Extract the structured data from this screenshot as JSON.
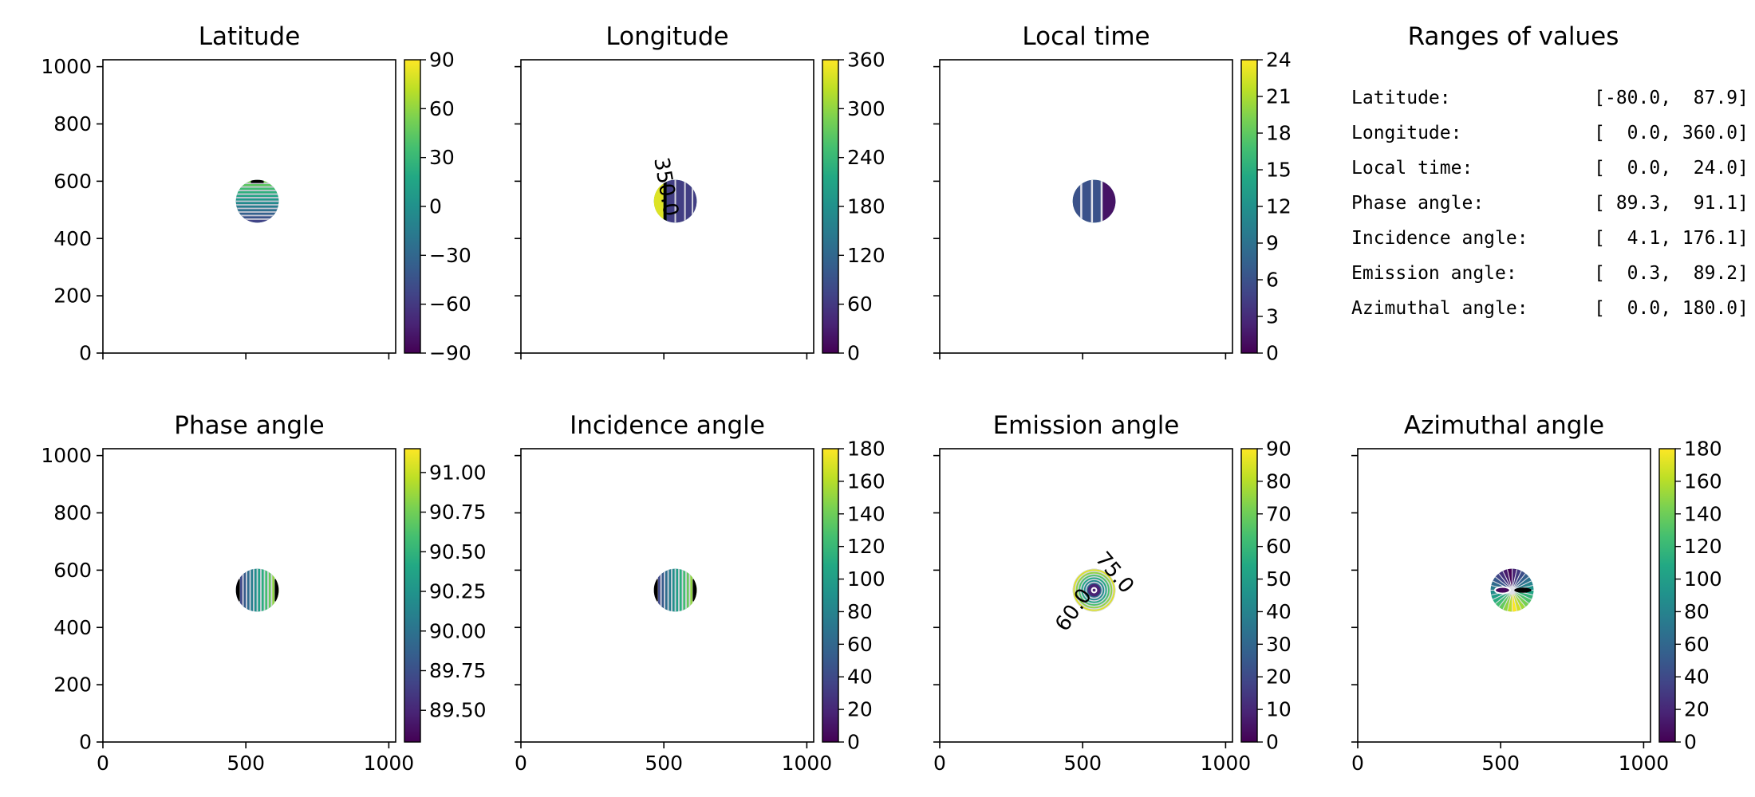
{
  "chart_data": [
    {
      "type": "heatmap",
      "title": "Latitude",
      "xlim": [
        0,
        1024
      ],
      "ylim": [
        0,
        1024
      ],
      "xticks": [
        "0",
        "500",
        "1000"
      ],
      "yticks": [
        "0",
        "200",
        "400",
        "600",
        "800",
        "1000"
      ],
      "show_xlabels": false,
      "show_ylabels": true,
      "colorbar": {
        "range": [
          -90,
          90
        ],
        "ticks": [
          "90",
          "60",
          "30",
          "0",
          "−30",
          "−60",
          "−90"
        ],
        "tick_values": [
          90,
          60,
          30,
          0,
          -30,
          -60,
          -90
        ]
      },
      "disk": {
        "cx": 540,
        "cy": 530,
        "r": 75
      },
      "pattern": "horizontal",
      "contour_labels": []
    },
    {
      "type": "heatmap",
      "title": "Longitude",
      "xlim": [
        0,
        1024
      ],
      "ylim": [
        0,
        1024
      ],
      "xticks": [
        "0",
        "500",
        "1000"
      ],
      "yticks": [
        "0",
        "200",
        "400",
        "600",
        "800",
        "1000"
      ],
      "show_xlabels": false,
      "show_ylabels": false,
      "colorbar": {
        "range": [
          0,
          360
        ],
        "ticks": [
          "360",
          "300",
          "240",
          "180",
          "120",
          "60",
          "0"
        ],
        "tick_values": [
          360,
          300,
          240,
          180,
          120,
          60,
          0
        ]
      },
      "disk": {
        "cx": 540,
        "cy": 530,
        "r": 75
      },
      "pattern": "longitude",
      "contour_labels": [
        {
          "text": "350.0",
          "x": 505,
          "y": 580,
          "angle": 80
        }
      ]
    },
    {
      "type": "heatmap",
      "title": "Local time",
      "xlim": [
        0,
        1024
      ],
      "ylim": [
        0,
        1024
      ],
      "xticks": [
        "0",
        "500",
        "1000"
      ],
      "yticks": [
        "0",
        "200",
        "400",
        "600",
        "800",
        "1000"
      ],
      "show_xlabels": false,
      "show_ylabels": false,
      "colorbar": {
        "range": [
          0,
          24
        ],
        "ticks": [
          "24",
          "21",
          "18",
          "15",
          "12",
          "9",
          "6",
          "3",
          "0"
        ],
        "tick_values": [
          24,
          21,
          18,
          15,
          12,
          9,
          6,
          3,
          0
        ]
      },
      "disk": {
        "cx": 540,
        "cy": 530,
        "r": 75
      },
      "pattern": "localtime",
      "contour_labels": []
    },
    {
      "type": "heatmap",
      "title": "Phase angle",
      "xlim": [
        0,
        1024
      ],
      "ylim": [
        0,
        1024
      ],
      "xticks": [
        "0",
        "500",
        "1000"
      ],
      "yticks": [
        "0",
        "200",
        "400",
        "600",
        "800",
        "1000"
      ],
      "show_xlabels": true,
      "show_ylabels": true,
      "colorbar": {
        "range": [
          89.3,
          91.15
        ],
        "ticks": [
          "91.00",
          "90.75",
          "90.50",
          "90.25",
          "90.00",
          "89.75",
          "89.50"
        ],
        "tick_values": [
          91.0,
          90.75,
          90.5,
          90.25,
          90.0,
          89.75,
          89.5
        ]
      },
      "disk": {
        "cx": 540,
        "cy": 530,
        "r": 75
      },
      "pattern": "vertical",
      "contour_labels": []
    },
    {
      "type": "heatmap",
      "title": "Incidence angle",
      "xlim": [
        0,
        1024
      ],
      "ylim": [
        0,
        1024
      ],
      "xticks": [
        "0",
        "500",
        "1000"
      ],
      "yticks": [
        "0",
        "200",
        "400",
        "600",
        "800",
        "1000"
      ],
      "show_xlabels": true,
      "show_ylabels": false,
      "colorbar": {
        "range": [
          0,
          180
        ],
        "ticks": [
          "180",
          "160",
          "140",
          "120",
          "100",
          "80",
          "60",
          "40",
          "20",
          "0"
        ],
        "tick_values": [
          180,
          160,
          140,
          120,
          100,
          80,
          60,
          40,
          20,
          0
        ]
      },
      "disk": {
        "cx": 540,
        "cy": 530,
        "r": 75
      },
      "pattern": "vertical",
      "contour_labels": []
    },
    {
      "type": "heatmap",
      "title": "Emission angle",
      "xlim": [
        0,
        1024
      ],
      "ylim": [
        0,
        1024
      ],
      "xticks": [
        "0",
        "500",
        "1000"
      ],
      "yticks": [
        "0",
        "200",
        "400",
        "600",
        "800",
        "1000"
      ],
      "show_xlabels": true,
      "show_ylabels": false,
      "colorbar": {
        "range": [
          0,
          90
        ],
        "ticks": [
          "90",
          "80",
          "70",
          "60",
          "50",
          "40",
          "30",
          "20",
          "10",
          "0"
        ],
        "tick_values": [
          90,
          80,
          70,
          60,
          50,
          40,
          30,
          20,
          10,
          0
        ]
      },
      "disk": {
        "cx": 540,
        "cy": 530,
        "r": 75
      },
      "pattern": "rings",
      "contour_labels": [
        {
          "text": "75.0",
          "x": 610,
          "y": 590,
          "angle": 50
        },
        {
          "text": "60.0",
          "x": 470,
          "y": 460,
          "angle": -55
        }
      ]
    },
    {
      "type": "heatmap",
      "title": "Azimuthal angle",
      "xlim": [
        0,
        1024
      ],
      "ylim": [
        0,
        1024
      ],
      "xticks": [
        "0",
        "500",
        "1000"
      ],
      "yticks": [
        "0",
        "200",
        "400",
        "600",
        "800",
        "1000"
      ],
      "show_xlabels": true,
      "show_ylabels": false,
      "colorbar": {
        "range": [
          0,
          180
        ],
        "ticks": [
          "180",
          "160",
          "140",
          "120",
          "100",
          "80",
          "60",
          "40",
          "20",
          "0"
        ],
        "tick_values": [
          180,
          160,
          140,
          120,
          100,
          80,
          60,
          40,
          20,
          0
        ]
      },
      "disk": {
        "cx": 540,
        "cy": 530,
        "r": 75
      },
      "pattern": "azimuthal",
      "contour_labels": []
    }
  ],
  "ranges": {
    "title": "Ranges of values",
    "rows": [
      {
        "label": "Latitude:",
        "value": "[-80.0,  87.9]"
      },
      {
        "label": "Longitude:",
        "value": "[  0.0, 360.0]"
      },
      {
        "label": "Local time:",
        "value": "[  0.0,  24.0]"
      },
      {
        "label": "Phase angle:",
        "value": "[ 89.3,  91.1]"
      },
      {
        "label": "Incidence angle:",
        "value": "[  4.1, 176.1]"
      },
      {
        "label": "Emission angle:",
        "value": "[  0.3,  89.2]"
      },
      {
        "label": "Azimuthal angle:",
        "value": "[  0.0, 180.0]"
      }
    ]
  }
}
